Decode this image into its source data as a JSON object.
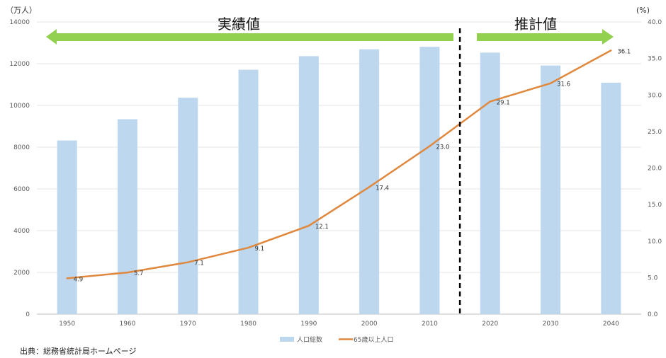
{
  "chart_data": {
    "type": "bar+line",
    "categories": [
      "1950",
      "1960",
      "1970",
      "1980",
      "1990",
      "2000",
      "2010",
      "2020",
      "2030",
      "2040"
    ],
    "series": [
      {
        "name": "人口総数",
        "type": "bar",
        "axis": "left",
        "color": "#bdd7ee",
        "values": [
          8320,
          9340,
          10370,
          11710,
          12360,
          12690,
          12810,
          12530,
          11910,
          11090
        ]
      },
      {
        "name": "65歳以上人口",
        "type": "line",
        "axis": "right",
        "color": "#e0883e",
        "values": [
          4.9,
          5.7,
          7.1,
          9.1,
          12.1,
          17.4,
          23.0,
          29.1,
          31.6,
          36.1
        ],
        "labels": [
          "4.9",
          "5.7",
          "7.1",
          "9.1",
          "12.1",
          "17.4",
          "23.0",
          "29.1",
          "31.6",
          "36.1"
        ]
      }
    ],
    "left_axis": {
      "unit_label": "（万人）",
      "ylim": [
        0,
        14000
      ],
      "ticks": [
        "0",
        "2000",
        "4000",
        "6000",
        "8000",
        "10000",
        "12000",
        "14000"
      ]
    },
    "right_axis": {
      "unit_label": "(%)",
      "ylim": [
        0,
        40
      ],
      "ticks": [
        "0.0",
        "5.0",
        "10.0",
        "15.0",
        "20.0",
        "25.0",
        "30.0",
        "35.0",
        "40.0"
      ]
    },
    "grid": true,
    "legend": "bottom",
    "annotations": {
      "actual": "実績値",
      "projection": "推計値",
      "divider_between": [
        "2010",
        "2020"
      ],
      "arrow_color": "#92d050"
    }
  },
  "source": "出典：総務省統計局ホームページ"
}
